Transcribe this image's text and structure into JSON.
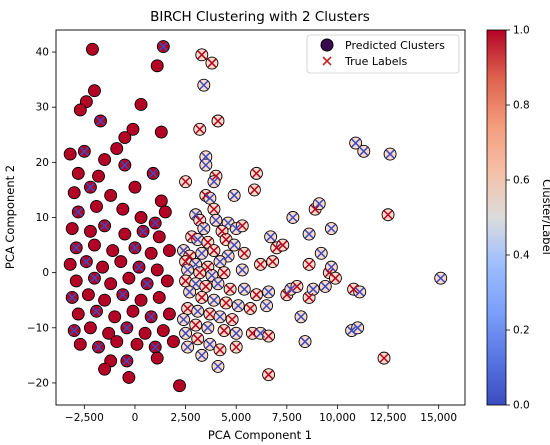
{
  "chart_data": {
    "type": "scatter",
    "title": "BIRCH Clustering with 2 Clusters",
    "xlabel": "PCA Component 1",
    "ylabel": "PCA Component 2",
    "xlim": [
      -3900,
      16300
    ],
    "ylim": [
      -24,
      44
    ],
    "x_ticks": [
      -2500,
      0,
      2500,
      5000,
      7500,
      10000,
      12500,
      15000
    ],
    "x_tick_labels": [
      "−2,500",
      "0",
      "2,500",
      "5,000",
      "7,500",
      "10,000",
      "12,500",
      "15,000"
    ],
    "y_ticks": [
      -20,
      -10,
      0,
      10,
      20,
      30,
      40
    ],
    "y_tick_labels": [
      "−20",
      "−10",
      "0",
      "10",
      "20",
      "30",
      "40"
    ],
    "legend": {
      "placement": "top-right",
      "entries": [
        {
          "label": "Predicted Clusters",
          "marker": "circle"
        },
        {
          "label": "True Labels",
          "marker": "x"
        }
      ]
    },
    "colorbar": {
      "label": "Cluster/Label",
      "range": [
        0.0,
        1.0
      ],
      "ticks": [
        "0.0",
        "0.2",
        "0.4",
        "0.6",
        "0.8",
        "1.0"
      ],
      "colormap": "coolwarm"
    },
    "cluster_colors": {
      "0": "#b40426",
      "1": "#fddbc7"
    },
    "label_colors": {
      "0": "#b40426",
      "1": "#3b4cc0"
    },
    "series": [
      {
        "name": "Predicted Clusters",
        "points": [
          [
            -2100,
            40.5,
            0,
            0
          ],
          [
            1100,
            37.5,
            0,
            0
          ],
          [
            1400,
            41,
            0,
            1
          ],
          [
            300,
            30.5,
            0,
            0
          ],
          [
            -2000,
            33,
            0,
            0
          ],
          [
            -2400,
            31,
            0,
            0
          ],
          [
            -2700,
            29.5,
            0,
            0
          ],
          [
            -1700,
            27.5,
            0,
            1
          ],
          [
            -500,
            24.5,
            0,
            0
          ],
          [
            -100,
            26,
            0,
            0
          ],
          [
            -900,
            22.5,
            0,
            0
          ],
          [
            1300,
            25.5,
            0,
            0
          ],
          [
            -3200,
            21.5,
            0,
            0
          ],
          [
            -2500,
            22,
            0,
            1
          ],
          [
            -1500,
            20.5,
            0,
            0
          ],
          [
            -500,
            19.5,
            0,
            1
          ],
          [
            -2800,
            18,
            0,
            0
          ],
          [
            -1800,
            17.5,
            0,
            0
          ],
          [
            -3000,
            14.5,
            0,
            0
          ],
          [
            -2200,
            15.5,
            0,
            1
          ],
          [
            -1200,
            14,
            0,
            0
          ],
          [
            0,
            15.5,
            0,
            0
          ],
          [
            900,
            18,
            0,
            1
          ],
          [
            1300,
            13,
            0,
            0
          ],
          [
            -2800,
            11,
            0,
            1
          ],
          [
            -1900,
            12,
            0,
            0
          ],
          [
            -600,
            11.5,
            0,
            0
          ],
          [
            300,
            10,
            0,
            0
          ],
          [
            1000,
            9,
            0,
            1
          ],
          [
            1500,
            11,
            0,
            0
          ],
          [
            -3100,
            8,
            0,
            0
          ],
          [
            -2200,
            7.5,
            0,
            0
          ],
          [
            -1500,
            8.5,
            0,
            1
          ],
          [
            -500,
            7,
            0,
            0
          ],
          [
            400,
            7.5,
            0,
            1
          ],
          [
            1200,
            6.5,
            0,
            0
          ],
          [
            -2900,
            4.5,
            0,
            1
          ],
          [
            -2000,
            5,
            0,
            0
          ],
          [
            -1100,
            4,
            0,
            0
          ],
          [
            0,
            4.5,
            0,
            1
          ],
          [
            800,
            3.5,
            0,
            0
          ],
          [
            1700,
            4,
            0,
            0
          ],
          [
            -3200,
            1.5,
            0,
            0
          ],
          [
            -2400,
            2,
            0,
            1
          ],
          [
            -1600,
            1,
            0,
            0
          ],
          [
            -700,
            2,
            0,
            0
          ],
          [
            200,
            1,
            0,
            1
          ],
          [
            1100,
            0.5,
            0,
            0
          ],
          [
            -2900,
            -1.5,
            0,
            0
          ],
          [
            -2000,
            -1,
            0,
            1
          ],
          [
            -1200,
            -2,
            0,
            0
          ],
          [
            -300,
            -1,
            0,
            0
          ],
          [
            600,
            -2,
            0,
            1
          ],
          [
            1600,
            -1.5,
            0,
            0
          ],
          [
            -3100,
            -4.5,
            0,
            1
          ],
          [
            -2300,
            -4,
            0,
            0
          ],
          [
            -1500,
            -5,
            0,
            0
          ],
          [
            -600,
            -4,
            0,
            1
          ],
          [
            300,
            -5,
            0,
            0
          ],
          [
            1200,
            -4.5,
            0,
            0
          ],
          [
            -2800,
            -7.5,
            0,
            0
          ],
          [
            -1900,
            -7,
            0,
            1
          ],
          [
            -1000,
            -8,
            0,
            0
          ],
          [
            -100,
            -7,
            0,
            0
          ],
          [
            800,
            -8,
            0,
            1
          ],
          [
            1700,
            -7.5,
            0,
            0
          ],
          [
            -3000,
            -10.5,
            0,
            1
          ],
          [
            -2200,
            -10,
            0,
            0
          ],
          [
            -1300,
            -11,
            0,
            0
          ],
          [
            -400,
            -10,
            0,
            1
          ],
          [
            500,
            -11,
            0,
            0
          ],
          [
            1400,
            -10.5,
            0,
            0
          ],
          [
            -2700,
            -13,
            0,
            0
          ],
          [
            -1800,
            -13.5,
            0,
            1
          ],
          [
            -900,
            -12.5,
            0,
            0
          ],
          [
            100,
            -13,
            0,
            0
          ],
          [
            1000,
            -13.5,
            0,
            1
          ],
          [
            1900,
            -12.5,
            0,
            0
          ],
          [
            -1200,
            -16,
            0,
            0
          ],
          [
            -400,
            -16,
            0,
            1
          ],
          [
            1100,
            -15.5,
            0,
            0
          ],
          [
            -1500,
            -17.5,
            0,
            0
          ],
          [
            -300,
            -19,
            0,
            0
          ],
          [
            2200,
            -20.5,
            0,
            0
          ],
          [
            3300,
            39.5,
            1,
            0
          ],
          [
            3800,
            38,
            1,
            0
          ],
          [
            3400,
            34,
            1,
            1
          ],
          [
            4100,
            27.5,
            1,
            0
          ],
          [
            3200,
            26,
            1,
            0
          ],
          [
            3500,
            21,
            1,
            1
          ],
          [
            3500,
            19.5,
            1,
            1
          ],
          [
            4000,
            17.5,
            1,
            0
          ],
          [
            3900,
            16.5,
            1,
            1
          ],
          [
            2500,
            16.5,
            1,
            0
          ],
          [
            6000,
            18,
            1,
            0
          ],
          [
            5900,
            15,
            1,
            0
          ],
          [
            4900,
            14,
            1,
            1
          ],
          [
            3500,
            14,
            1,
            0
          ],
          [
            3700,
            13.5,
            1,
            1
          ],
          [
            3900,
            11.5,
            1,
            0
          ],
          [
            4000,
            9.5,
            1,
            1
          ],
          [
            4600,
            9,
            1,
            1
          ],
          [
            3000,
            10.5,
            1,
            1
          ],
          [
            3200,
            9.5,
            1,
            0
          ],
          [
            3400,
            8,
            1,
            1
          ],
          [
            4300,
            7.5,
            1,
            0
          ],
          [
            5000,
            8,
            1,
            1
          ],
          [
            5300,
            8.5,
            1,
            0
          ],
          [
            2800,
            6.5,
            1,
            0
          ],
          [
            3100,
            6,
            1,
            1
          ],
          [
            3600,
            5.5,
            1,
            0
          ],
          [
            4500,
            6,
            1,
            0
          ],
          [
            4900,
            5,
            1,
            1
          ],
          [
            6700,
            6.5,
            1,
            1
          ],
          [
            7000,
            4.5,
            1,
            0
          ],
          [
            2400,
            4,
            1,
            1
          ],
          [
            2700,
            3,
            1,
            0
          ],
          [
            3300,
            3.5,
            1,
            1
          ],
          [
            3900,
            4,
            1,
            0
          ],
          [
            4600,
            3,
            1,
            1
          ],
          [
            5400,
            3.5,
            1,
            0
          ],
          [
            2500,
            2,
            1,
            0
          ],
          [
            3000,
            1.5,
            1,
            1
          ],
          [
            3600,
            1,
            1,
            0
          ],
          [
            4200,
            2,
            1,
            1
          ],
          [
            6800,
            2,
            1,
            0
          ],
          [
            2600,
            0.5,
            1,
            1
          ],
          [
            3200,
            0,
            1,
            0
          ],
          [
            3800,
            -0.5,
            1,
            1
          ],
          [
            4400,
            0,
            1,
            0
          ],
          [
            5300,
            0.5,
            1,
            1
          ],
          [
            6200,
            1.5,
            1,
            0
          ],
          [
            2500,
            -1.5,
            1,
            0
          ],
          [
            3000,
            -2,
            1,
            1
          ],
          [
            3500,
            -2.5,
            1,
            0
          ],
          [
            4100,
            -2,
            1,
            1
          ],
          [
            4700,
            -3,
            1,
            0
          ],
          [
            5400,
            -3,
            1,
            1
          ],
          [
            6000,
            -4,
            1,
            0
          ],
          [
            6600,
            -3.5,
            1,
            1
          ],
          [
            7500,
            -4,
            1,
            0
          ],
          [
            7700,
            -3,
            1,
            1
          ],
          [
            8000,
            -2.5,
            1,
            0
          ],
          [
            2700,
            -3.5,
            1,
            1
          ],
          [
            3300,
            -4.5,
            1,
            0
          ],
          [
            3900,
            -5,
            1,
            1
          ],
          [
            4500,
            -5.5,
            1,
            0
          ],
          [
            5100,
            -6,
            1,
            1
          ],
          [
            5700,
            -6.5,
            1,
            0
          ],
          [
            6500,
            -6,
            1,
            1
          ],
          [
            2600,
            -6.5,
            1,
            0
          ],
          [
            3100,
            -7,
            1,
            1
          ],
          [
            3700,
            -7.5,
            1,
            0
          ],
          [
            4200,
            -8,
            1,
            1
          ],
          [
            4800,
            -8.5,
            1,
            0
          ],
          [
            2400,
            -8.5,
            1,
            1
          ],
          [
            3000,
            -9.5,
            1,
            0
          ],
          [
            3600,
            -10,
            1,
            1
          ],
          [
            4400,
            -10.5,
            1,
            0
          ],
          [
            5000,
            -11,
            1,
            1
          ],
          [
            5800,
            -11,
            1,
            0
          ],
          [
            6200,
            -11,
            1,
            1
          ],
          [
            6600,
            -11.5,
            1,
            0
          ],
          [
            2500,
            -11,
            1,
            1
          ],
          [
            3100,
            -12,
            1,
            0
          ],
          [
            3700,
            -13,
            1,
            1
          ],
          [
            4200,
            -14,
            1,
            0
          ],
          [
            5000,
            -13.5,
            1,
            0
          ],
          [
            2600,
            -13.5,
            1,
            1
          ],
          [
            3300,
            -15,
            1,
            1
          ],
          [
            4100,
            -17,
            1,
            1
          ],
          [
            6600,
            -18.5,
            1,
            0
          ],
          [
            8400,
            -12.5,
            1,
            1
          ],
          [
            8200,
            -8,
            1,
            1
          ],
          [
            8600,
            -4.5,
            1,
            0
          ],
          [
            8800,
            -3,
            1,
            1
          ],
          [
            9400,
            -2.5,
            1,
            1
          ],
          [
            9600,
            0,
            1,
            0
          ],
          [
            9700,
            1,
            1,
            1
          ],
          [
            9900,
            -1,
            1,
            0
          ],
          [
            8600,
            1.5,
            1,
            0
          ],
          [
            9200,
            3.5,
            1,
            1
          ],
          [
            8600,
            7,
            1,
            1
          ],
          [
            9700,
            8,
            1,
            1
          ],
          [
            8900,
            11.5,
            1,
            0
          ],
          [
            9100,
            12.5,
            1,
            1
          ],
          [
            7800,
            10,
            1,
            1
          ],
          [
            7300,
            5,
            1,
            0
          ],
          [
            10800,
            -3,
            1,
            0
          ],
          [
            11100,
            -3.5,
            1,
            1
          ],
          [
            10700,
            -10.5,
            1,
            1
          ],
          [
            11000,
            -10,
            1,
            1
          ],
          [
            10900,
            23.5,
            1,
            1
          ],
          [
            11300,
            22,
            1,
            1
          ],
          [
            12600,
            21.5,
            1,
            1
          ],
          [
            12500,
            10.5,
            1,
            0
          ],
          [
            12300,
            -15.5,
            1,
            0
          ],
          [
            15100,
            -1,
            1,
            1
          ]
        ]
      }
    ]
  }
}
